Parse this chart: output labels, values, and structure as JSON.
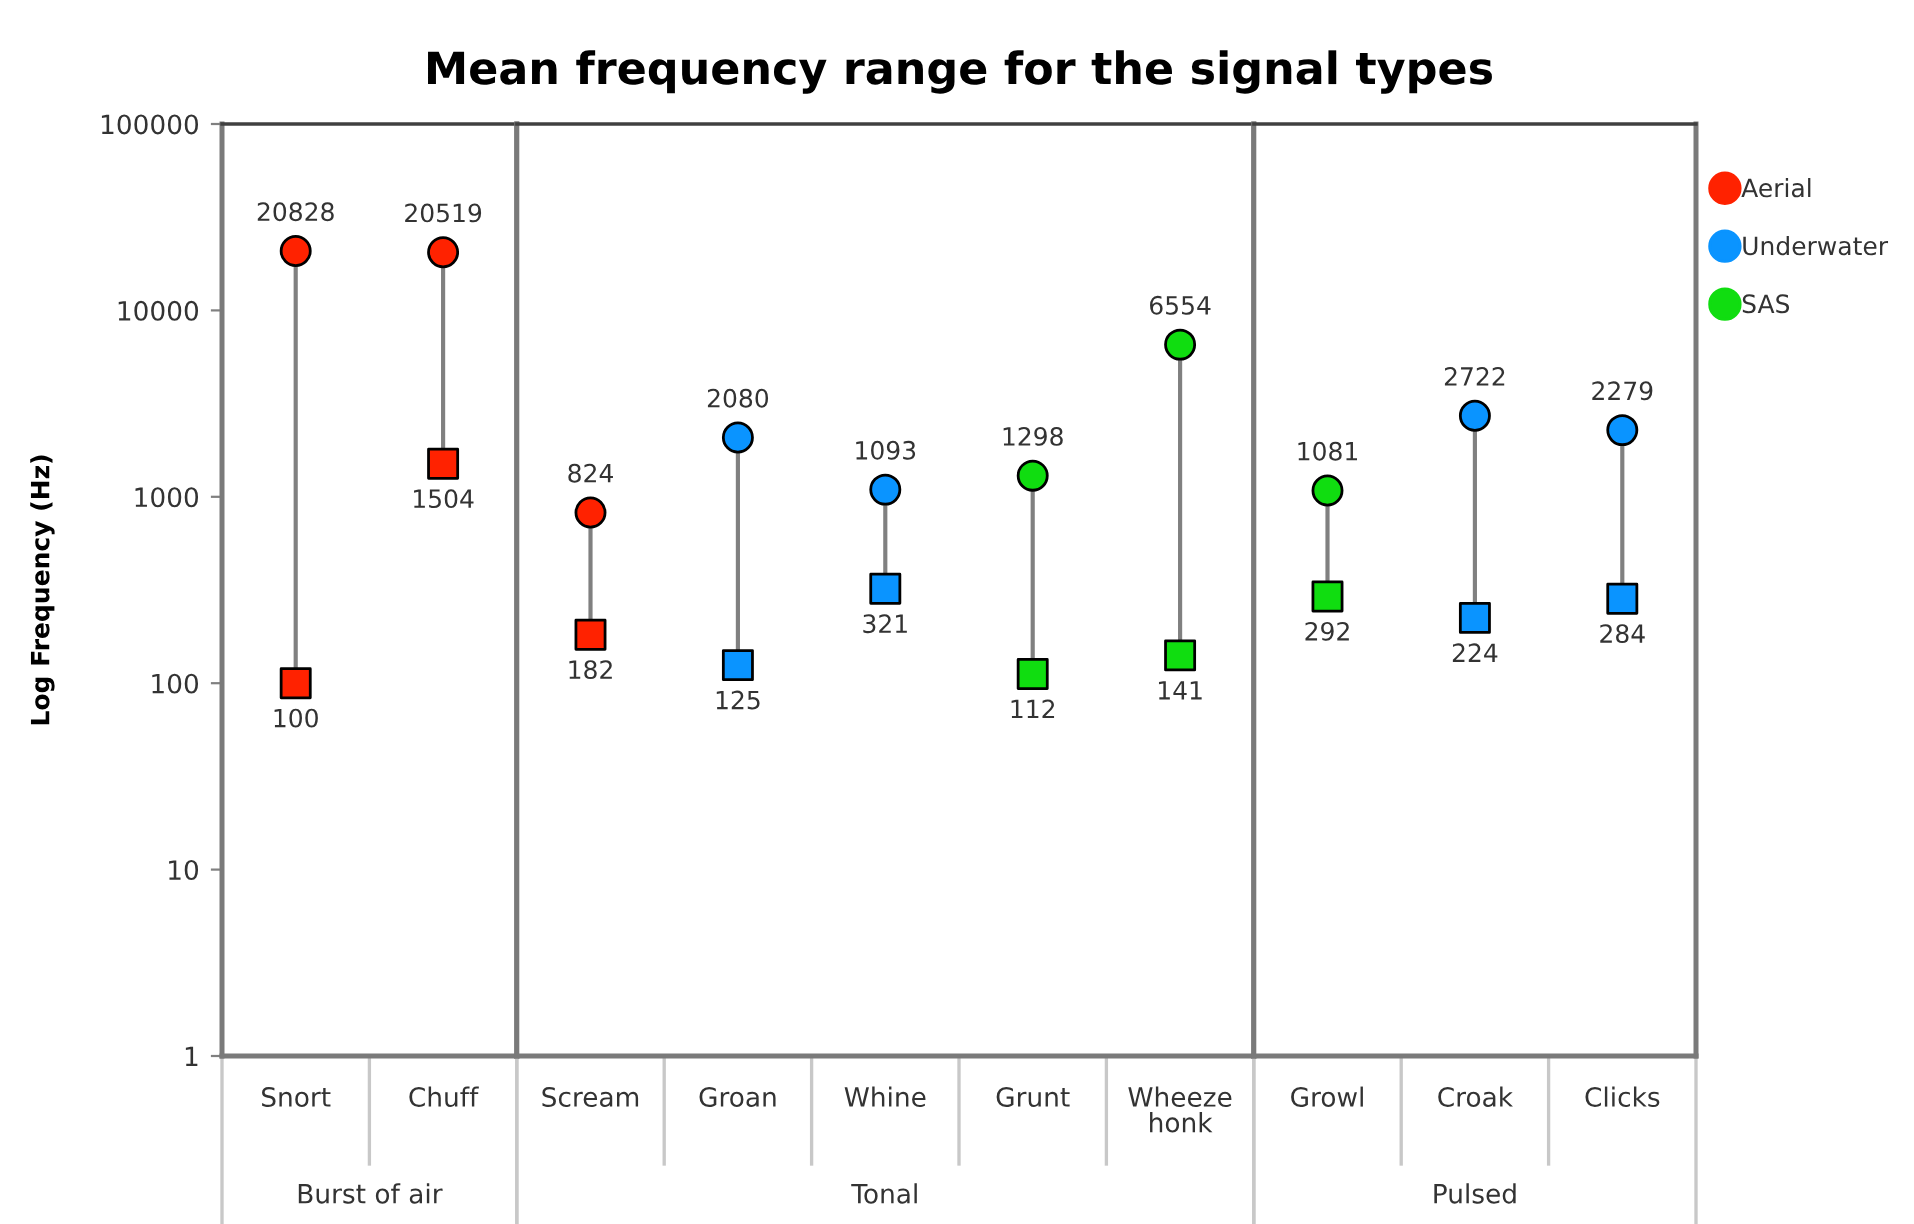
{
  "chart_data": [
    {
      "type": "scatter",
      "title": "Mean frequency range for the signal types",
      "ylabel": "Log Frequency (Hz)",
      "xlabel": "Burst of air",
      "categories": [
        "Snort",
        "Chuff"
      ],
      "series": [
        {
          "color": "#ff2200",
          "marker": "circle",
          "values": [
            20828,
            20519
          ]
        },
        {
          "color": "#ff2200",
          "marker": "square",
          "values": [
            100,
            1504
          ]
        }
      ],
      "log": true,
      "ylim": [
        1,
        100000
      ],
      "yticks": [
        1,
        10,
        100,
        1000,
        10000,
        100000
      ],
      "data_labels": true
    },
    {
      "type": "scatter",
      "xlabel": "Tonal",
      "categories": [
        "Scream",
        "Groan",
        "Whine",
        "Grunt",
        "Wheeze honk"
      ],
      "series": [
        {
          "name": "Aerial",
          "color": "#ff2200",
          "marker": "circle",
          "values": [
            824,
            null,
            null,
            null,
            null
          ]
        },
        {
          "color": "#ff2200",
          "marker": "square",
          "values": [
            182,
            null,
            null,
            null,
            null
          ]
        },
        {
          "name": "Underwater",
          "color": "#0a94ff",
          "marker": "circle",
          "values": [
            null,
            2080,
            1093,
            null,
            null
          ]
        },
        {
          "color": "#0a94ff",
          "marker": "square",
          "values": [
            null,
            125,
            321,
            null,
            null
          ]
        },
        {
          "name": "SAS",
          "color": "#10dd10",
          "marker": "circle",
          "values": [
            null,
            null,
            null,
            1298,
            6554
          ]
        },
        {
          "color": "#10dd10",
          "marker": "square",
          "values": [
            null,
            null,
            null,
            112,
            141
          ]
        }
      ],
      "log": true,
      "ylim": [
        1,
        100000
      ],
      "yticks": [
        1,
        10,
        100,
        1000,
        10000,
        100000
      ],
      "tick_labels": "x",
      "data_labels": true,
      "legend": "right"
    },
    {
      "type": "scatter",
      "xlabel": "Pulsed",
      "categories": [
        "Growl",
        "Croak",
        "Clicks"
      ],
      "series": [
        {
          "color": "#10dd10",
          "marker": "circle",
          "values": [
            1081,
            null,
            null
          ]
        },
        {
          "color": "#10dd10",
          "marker": "square",
          "values": [
            292,
            null,
            null
          ]
        },
        {
          "color": "#0a94ff",
          "marker": "circle",
          "values": [
            null,
            2722,
            2279
          ]
        },
        {
          "color": "#0a94ff",
          "marker": "square",
          "values": [
            null,
            224,
            284
          ]
        }
      ],
      "log": true,
      "ylim": [
        1,
        100000
      ],
      "yticks": [
        1,
        10,
        100,
        1000,
        10000,
        100000
      ],
      "tick_labels": "x",
      "data_labels": true
    }
  ]
}
